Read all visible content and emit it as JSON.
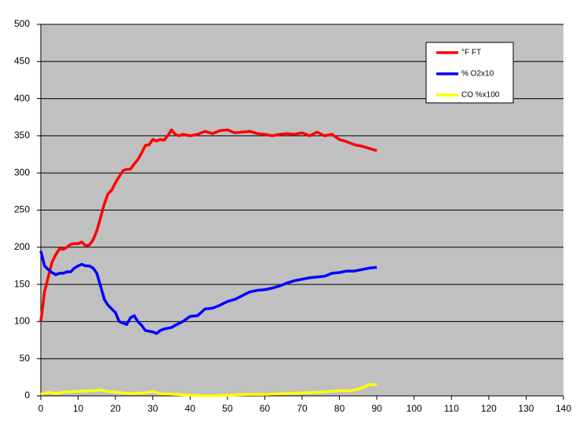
{
  "chart_data": {
    "type": "line",
    "xlim": [
      0,
      140
    ],
    "ylim": [
      0,
      500
    ],
    "xticks": [
      0,
      10,
      20,
      30,
      40,
      50,
      60,
      70,
      80,
      90,
      100,
      110,
      120,
      130,
      140
    ],
    "yticks": [
      0,
      50,
      100,
      150,
      200,
      250,
      300,
      350,
      400,
      450,
      500
    ],
    "grid": true,
    "legend": "top-right",
    "background": "#c0c0c0",
    "series": [
      {
        "name": "°F FT",
        "color": "#ff0000",
        "x": [
          0,
          1,
          2,
          3,
          4,
          5,
          6,
          7,
          8,
          9,
          10,
          11,
          12,
          13,
          14,
          15,
          16,
          17,
          18,
          19,
          20,
          21,
          22,
          23,
          24,
          25,
          26,
          27,
          28,
          29,
          30,
          31,
          32,
          33,
          34,
          35,
          36,
          37,
          38,
          40,
          42,
          44,
          46,
          48,
          50,
          52,
          54,
          56,
          58,
          60,
          62,
          64,
          66,
          68,
          70,
          72,
          74,
          76,
          78,
          80,
          82,
          84,
          86,
          88,
          90
        ],
        "values": [
          100,
          140,
          160,
          180,
          190,
          198,
          197,
          200,
          204,
          205,
          205,
          207,
          202,
          203,
          210,
          222,
          240,
          258,
          272,
          277,
          287,
          295,
          303,
          305,
          305,
          312,
          318,
          327,
          337,
          338,
          345,
          343,
          345,
          344,
          350,
          358,
          352,
          350,
          352,
          350,
          352,
          356,
          353,
          357,
          358,
          354,
          355,
          356,
          353,
          352,
          350,
          352,
          353,
          352,
          354,
          350,
          355,
          350,
          352,
          345,
          342,
          338,
          336,
          333,
          330
        ]
      },
      {
        "name": "% O2x10",
        "color": "#0000ff",
        "x": [
          0,
          1,
          2,
          3,
          4,
          5,
          6,
          7,
          8,
          9,
          10,
          11,
          12,
          13,
          14,
          15,
          16,
          17,
          18,
          19,
          20,
          21,
          22,
          23,
          24,
          25,
          26,
          27,
          28,
          29,
          30,
          31,
          32,
          33,
          34,
          35,
          36,
          38,
          40,
          42,
          44,
          46,
          48,
          50,
          52,
          54,
          56,
          58,
          60,
          62,
          64,
          66,
          68,
          70,
          72,
          74,
          76,
          78,
          80,
          82,
          84,
          86,
          88,
          90
        ],
        "values": [
          195,
          175,
          170,
          166,
          163,
          165,
          165,
          167,
          167,
          172,
          175,
          177,
          175,
          175,
          172,
          165,
          148,
          130,
          122,
          117,
          112,
          100,
          98,
          96,
          105,
          108,
          100,
          95,
          88,
          87,
          86,
          84,
          88,
          90,
          91,
          92,
          95,
          100,
          107,
          108,
          117,
          118,
          122,
          127,
          130,
          135,
          140,
          142,
          143,
          145,
          148,
          152,
          155,
          157,
          159,
          160,
          161,
          165,
          166,
          168,
          168,
          170,
          172,
          173
        ]
      },
      {
        "name": "CO %x100",
        "color": "#ffff00",
        "x": [
          0,
          2,
          4,
          6,
          10,
          14,
          16,
          18,
          20,
          22,
          24,
          28,
          30,
          32,
          36,
          40,
          45,
          50,
          55,
          60,
          65,
          70,
          75,
          80,
          83,
          85,
          87,
          88,
          90
        ],
        "values": [
          2,
          5,
          3,
          5,
          6,
          7,
          8,
          6,
          5,
          4,
          3,
          4,
          6,
          3,
          2,
          1,
          0,
          1,
          2,
          2,
          3,
          4,
          5,
          7,
          7,
          9,
          13,
          15,
          15
        ]
      }
    ]
  }
}
